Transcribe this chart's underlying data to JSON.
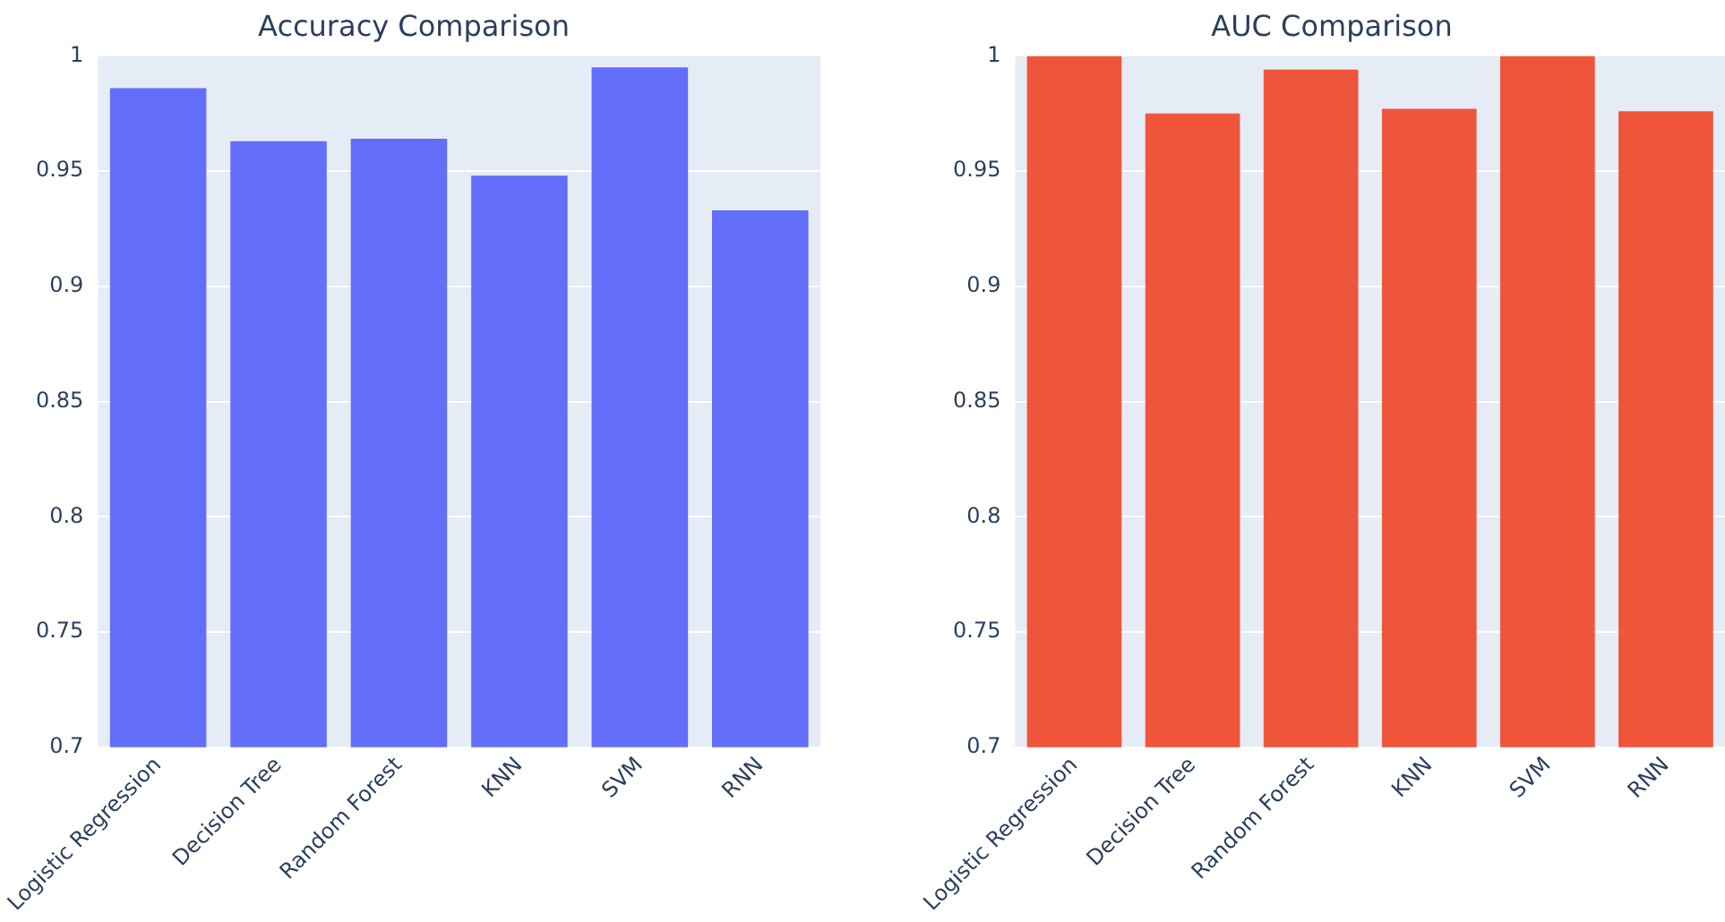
{
  "chart_data": [
    {
      "type": "bar",
      "title": "Accuracy Comparison",
      "categories": [
        "Logistic Regression",
        "Decision Tree",
        "Random Forest",
        "KNN",
        "SVM",
        "RNN"
      ],
      "values": [
        0.986,
        0.963,
        0.964,
        0.948,
        0.995,
        0.933
      ],
      "color": "#636efa",
      "ylim": [
        0.7,
        1
      ],
      "yticks": [
        0.7,
        0.75,
        0.8,
        0.85,
        0.9,
        0.95,
        1
      ],
      "grid": "y"
    },
    {
      "type": "bar",
      "title": "AUC Comparison",
      "categories": [
        "Logistic Regression",
        "Decision Tree",
        "Random Forest",
        "KNN",
        "SVM",
        "RNN"
      ],
      "values": [
        1,
        0.975,
        0.994,
        0.977,
        1,
        0.976
      ],
      "color": "#ef553b",
      "ylim": [
        0.7,
        1
      ],
      "yticks": [
        0.7,
        0.75,
        0.8,
        0.85,
        0.9,
        0.95,
        1
      ],
      "grid": "y"
    }
  ]
}
